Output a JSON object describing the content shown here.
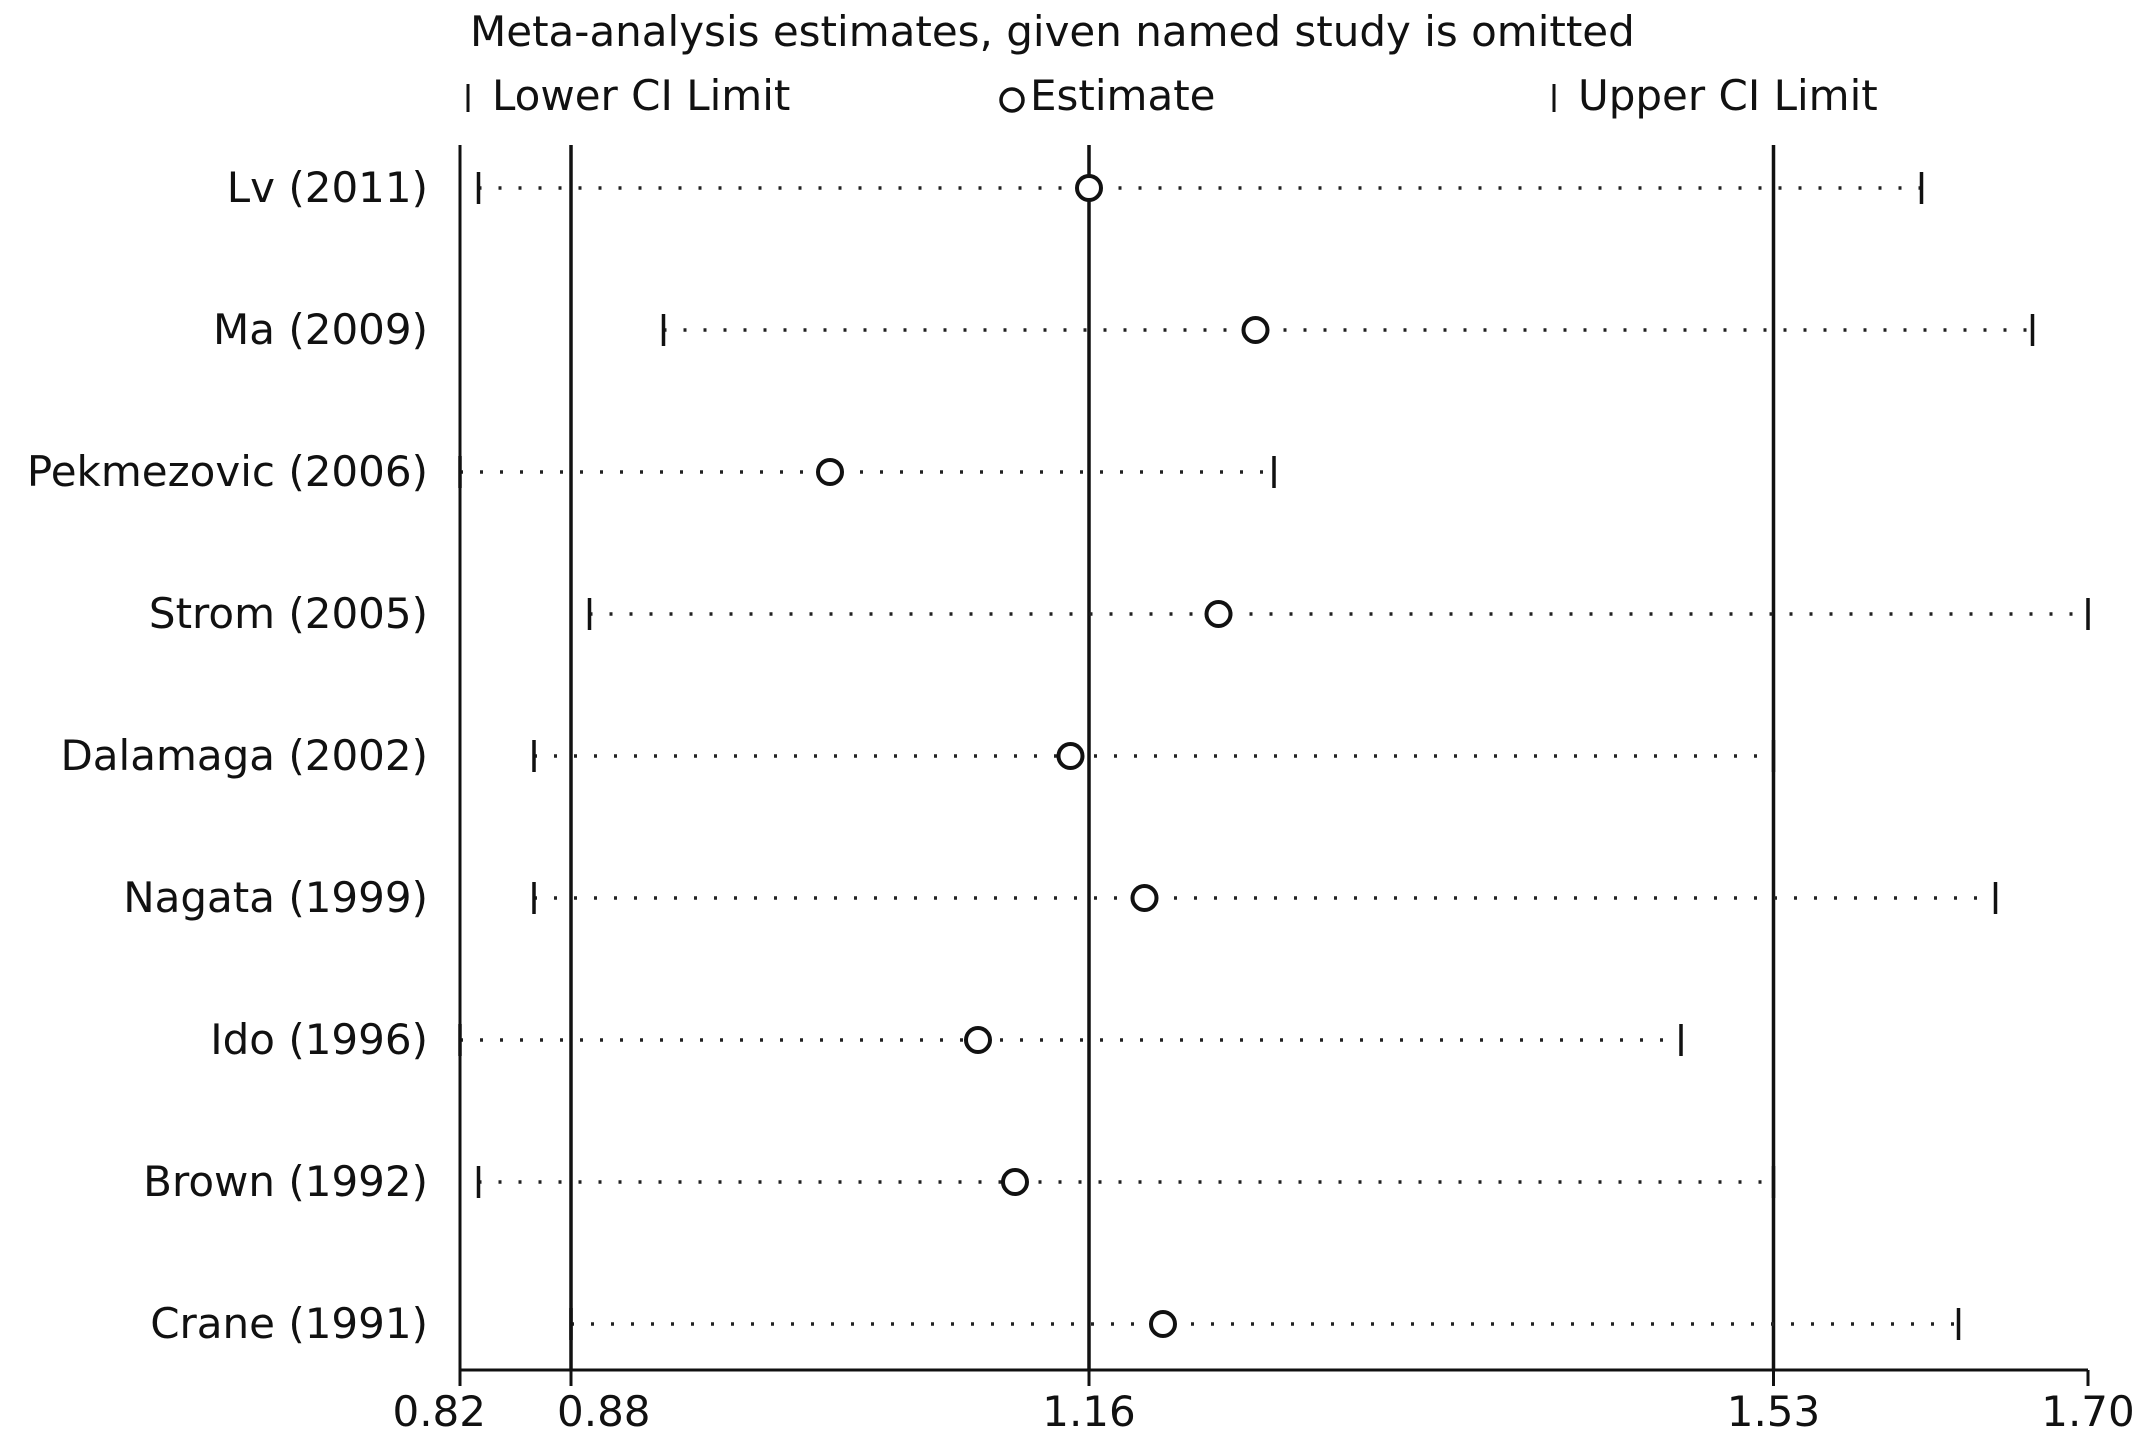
{
  "chart_data": {
    "type": "scatter",
    "title": "Meta-analysis estimates, given named study is omitted",
    "legend": {
      "lower": "Lower CI Limit",
      "estimate": "Estimate",
      "upper": "Upper CI Limit",
      "placement": "top"
    },
    "xlim": [
      0.82,
      1.7
    ],
    "x_ticks": [
      0.82,
      0.88,
      1.16,
      1.53,
      1.7
    ],
    "x_tick_labels": [
      "0.82",
      "0.88",
      "1.16",
      "1.53",
      "1.70"
    ],
    "reference_lines": [
      0.88,
      1.16,
      1.53
    ],
    "studies": [
      {
        "label": "Lv (2011)",
        "lower": 0.83,
        "estimate": 1.16,
        "upper": 1.61
      },
      {
        "label": "Ma (2009)",
        "lower": 0.93,
        "estimate": 1.25,
        "upper": 1.67
      },
      {
        "label": "Pekmezovic (2006)",
        "lower": 0.82,
        "estimate": 1.02,
        "upper": 1.26
      },
      {
        "label": "Strom (2005)",
        "lower": 0.89,
        "estimate": 1.23,
        "upper": 1.7
      },
      {
        "label": "Dalamaga (2002)",
        "lower": 0.86,
        "estimate": 1.15,
        "upper": 1.53
      },
      {
        "label": "Nagata (1999)",
        "lower": 0.86,
        "estimate": 1.19,
        "upper": 1.65
      },
      {
        "label": "Ido (1996)",
        "lower": 0.82,
        "estimate": 1.1,
        "upper": 1.48
      },
      {
        "label": "Brown (1992)",
        "lower": 0.83,
        "estimate": 1.12,
        "upper": 1.53
      },
      {
        "label": "Crane (1991)",
        "lower": 0.88,
        "estimate": 1.2,
        "upper": 1.63
      }
    ]
  }
}
